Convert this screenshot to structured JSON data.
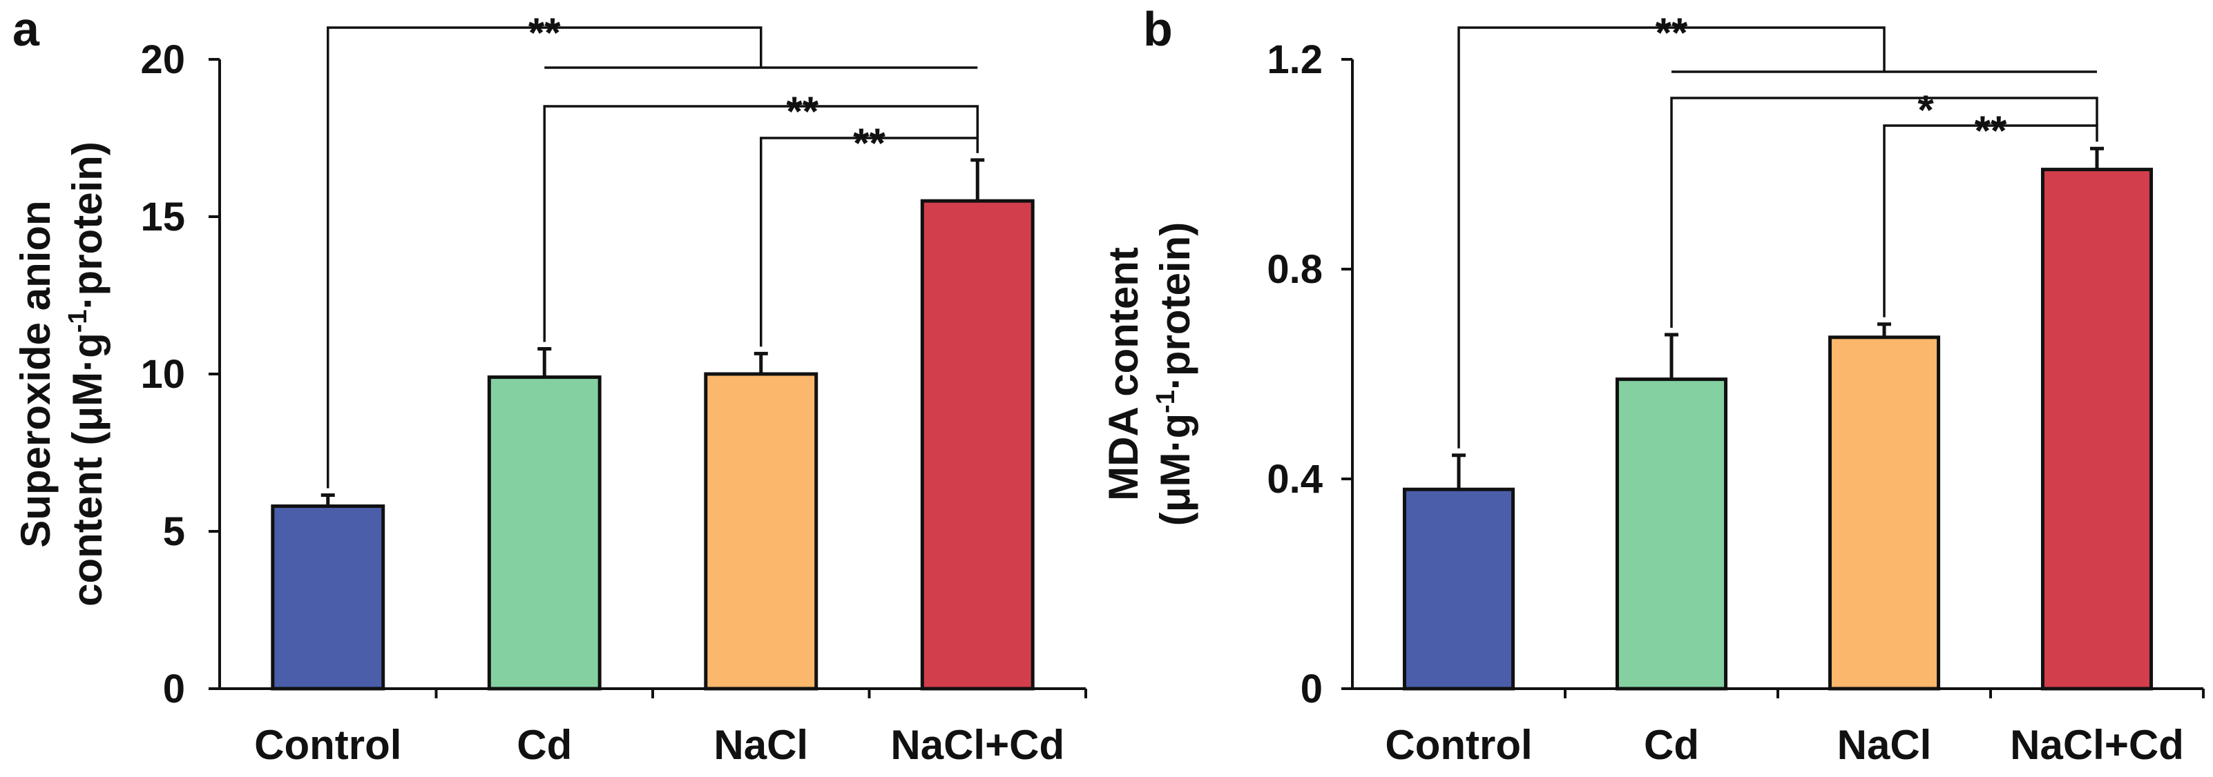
{
  "chart_data": [
    {
      "type": "bar",
      "panel_label": "a",
      "categories": [
        "Control",
        "Cd",
        "NaCl",
        "NaCl+Cd"
      ],
      "values": [
        5.8,
        9.9,
        10.0,
        15.5
      ],
      "errors": [
        0.35,
        0.9,
        0.65,
        1.3
      ],
      "colors": [
        "#4a5ea9",
        "#84d0a1",
        "#fbb76b",
        "#d33e4c"
      ],
      "ylabel_line1": "Superoxide anion",
      "ylabel_line2_prefix": "content (μM·g",
      "ylabel_sup": "-1",
      "ylabel_line2_suffix": "·protein)",
      "ylim": [
        0,
        20
      ],
      "yticks": [
        0,
        5,
        10,
        15,
        20
      ],
      "ytick_labels": [
        "0",
        "5",
        "10",
        "15",
        "20"
      ],
      "significance": [
        {
          "from": [
            0
          ],
          "to": [
            1,
            3
          ],
          "label": "**"
        },
        {
          "from": [
            1
          ],
          "to": [
            3
          ],
          "label": "**"
        },
        {
          "from": [
            2
          ],
          "to": [
            3
          ],
          "label": "**"
        }
      ]
    },
    {
      "type": "bar",
      "panel_label": "b",
      "categories": [
        "Control",
        "Cd",
        "NaCl",
        "NaCl+Cd"
      ],
      "values": [
        0.38,
        0.59,
        0.67,
        0.99
      ],
      "errors": [
        0.065,
        0.085,
        0.025,
        0.04
      ],
      "colors": [
        "#4a5ea9",
        "#84d0a1",
        "#fbb76b",
        "#d33e4c"
      ],
      "ylabel_line1": "MDA content",
      "ylabel_line2_prefix": "(μM·g",
      "ylabel_sup": "-1",
      "ylabel_line2_suffix": "·protein)",
      "ylim": [
        0,
        1.2
      ],
      "yticks": [
        0,
        0.4,
        0.8,
        1.2
      ],
      "ytick_labels": [
        "0",
        "0.4",
        "0.8",
        "1.2"
      ],
      "significance": [
        {
          "from": [
            0
          ],
          "to": [
            1,
            3
          ],
          "label": "**"
        },
        {
          "from": [
            1
          ],
          "to": [
            3
          ],
          "label": "*"
        },
        {
          "from": [
            2
          ],
          "to": [
            3
          ],
          "label": "**"
        }
      ]
    }
  ]
}
